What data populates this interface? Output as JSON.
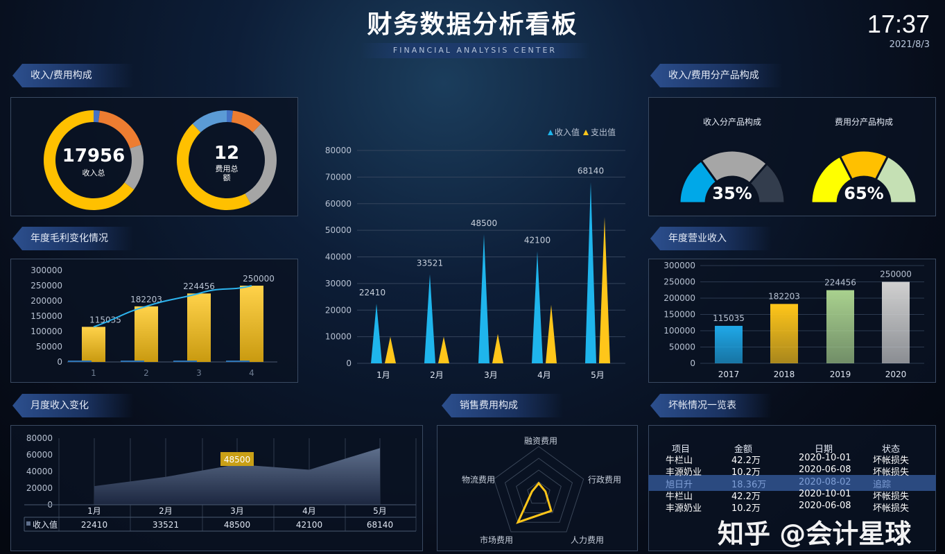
{
  "header": {
    "title": "财务数据分析看板",
    "subtitle": "FINANCIAL ANALYSIS CENTER",
    "time": "17:37",
    "date": "2021/8/3"
  },
  "sections": {
    "composition": "收入/费用构成",
    "gross_profit": "年度毛利变化情况",
    "monthly": "月度收入变化",
    "sales_cost": "销售费用构成",
    "product": "收入/费用分产品构成",
    "annual": "年度营业收入",
    "bad_debt": "坏帐情况一览表"
  },
  "watermark": "知乎 @会计星球",
  "colors": {
    "blue": "#1fb5ec",
    "yellow": "#ffc61a",
    "orange": "#ed7d31",
    "gray": "#a5a5a5",
    "accent": "#2c4f8e"
  },
  "chart_data": [
    {
      "id": "income-donut",
      "type": "pie",
      "center_value": "17956",
      "center_label": "收入总",
      "values": [
        2,
        18,
        15,
        65
      ],
      "colors": [
        "#4472c4",
        "#ed7d31",
        "#a5a5a5",
        "#ffc000"
      ]
    },
    {
      "id": "cost-donut",
      "type": "pie",
      "center_value": "12",
      "center_label": "费用总额",
      "values": [
        2,
        10,
        30,
        46,
        12
      ],
      "colors": [
        "#4472c4",
        "#ed7d31",
        "#a5a5a5",
        "#ffc000",
        "#5b9bd5"
      ]
    },
    {
      "id": "gross-profit",
      "type": "bar",
      "categories": [
        "1",
        "2",
        "3",
        "4"
      ],
      "values": [
        115035,
        182203,
        224456,
        250000
      ],
      "line_values": [
        115035,
        182203,
        224456,
        250000
      ],
      "yticks": [
        0,
        50000,
        100000,
        150000,
        200000,
        250000,
        300000
      ],
      "ylim": [
        0,
        300000
      ]
    },
    {
      "id": "monthly-income-expense",
      "type": "bar",
      "legend": [
        "收入值",
        "支出值"
      ],
      "legend_position": "top-right",
      "categories": [
        "1月",
        "2月",
        "3月",
        "4月",
        "5月"
      ],
      "series": [
        {
          "name": "收入值",
          "values": [
            22410,
            33521,
            48500,
            42100,
            68140
          ],
          "color": "#1fb5ec"
        },
        {
          "name": "支出值",
          "values": [
            10000,
            10000,
            11000,
            22000,
            55000
          ],
          "color": "#ffc61a"
        }
      ],
      "yticks": [
        0,
        10000,
        20000,
        30000,
        40000,
        50000,
        60000,
        70000,
        80000
      ],
      "ylim": [
        0,
        80000
      ],
      "grid": true
    },
    {
      "id": "product-income",
      "type": "gauge",
      "title": "收入分产品构成",
      "label": "35%",
      "values": [
        30,
        43,
        27
      ],
      "colors": [
        "#00a8e8",
        "#a6a6a6",
        "#333d4d"
      ]
    },
    {
      "id": "product-cost",
      "type": "gauge",
      "title": "费用分产品构成",
      "label": "65%",
      "values": [
        35,
        30,
        35
      ],
      "colors": [
        "#ffff00",
        "#ffc000",
        "#c5e0b4"
      ]
    },
    {
      "id": "annual-revenue",
      "type": "bar",
      "categories": [
        "2017",
        "2018",
        "2019",
        "2020"
      ],
      "values": [
        115035,
        182203,
        224456,
        250000
      ],
      "colors": [
        "#1fa8e8",
        "#ffc61a",
        "#a9d18e",
        "#d0d0d0"
      ],
      "yticks": [
        0,
        50000,
        100000,
        150000,
        200000,
        250000,
        300000
      ],
      "ylim": [
        0,
        300000
      ]
    },
    {
      "id": "monthly-income",
      "type": "area",
      "series_name": "收入值",
      "categories": [
        "1月",
        "2月",
        "3月",
        "4月",
        "5月"
      ],
      "values": [
        22410,
        33521,
        48500,
        42100,
        68140
      ],
      "highlight": "48500",
      "yticks": [
        0,
        20000,
        40000,
        60000,
        80000
      ],
      "ylim": [
        0,
        80000
      ]
    },
    {
      "id": "sales-cost-radar",
      "type": "radar",
      "indicators": [
        "融资费用",
        "行政费用",
        "人力费用",
        "市场费用",
        "物流费用"
      ],
      "values": [
        22,
        15,
        45,
        75,
        15
      ],
      "max": 100
    }
  ],
  "table": {
    "headers": [
      "项目",
      "金额",
      "日期",
      "状态"
    ],
    "rows": [
      [
        "牛栏山",
        "42.2万",
        "2020-10-01",
        "坏帐损失"
      ],
      [
        "丰源奶业",
        "10.2万",
        "2020-06-08",
        "坏帐损失"
      ],
      [
        "旭日升",
        "18.36万",
        "2020-08-02",
        "追踪"
      ],
      [
        "牛栏山",
        "42.2万",
        "2020-10-01",
        "坏帐损失"
      ],
      [
        "丰源奶业",
        "10.2万",
        "2020-06-08",
        "坏帐损失"
      ]
    ],
    "highlight_row": 2
  }
}
